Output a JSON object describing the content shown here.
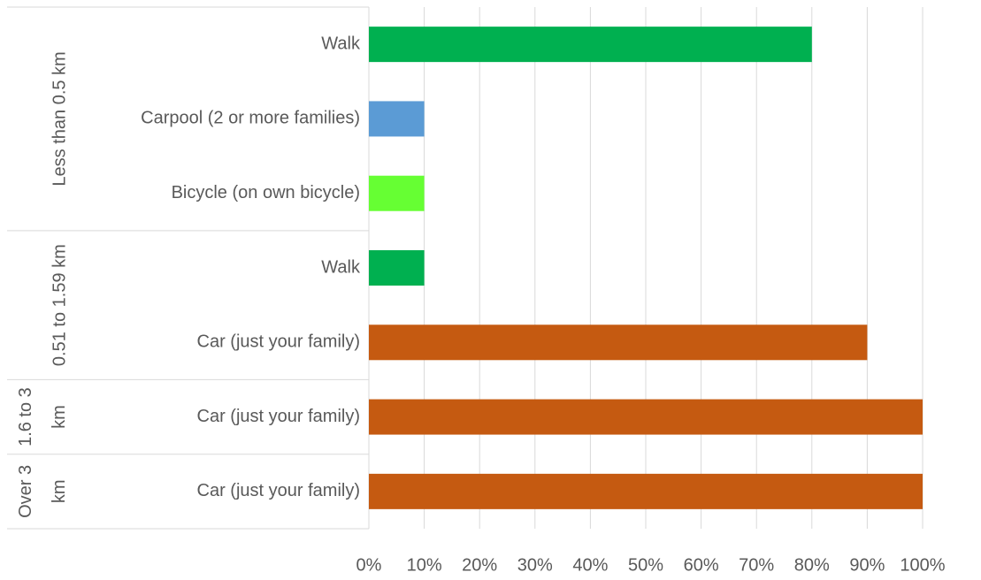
{
  "chart_data": {
    "type": "bar",
    "orientation": "horizontal",
    "groups": [
      {
        "name": "Less than 0.5 km",
        "categories": [
          "Walk",
          "Carpool (2 or more families)",
          "Bicycle (on own bicycle)"
        ],
        "values": [
          80,
          10,
          10
        ],
        "colors": [
          "#00b050",
          "#5b9bd5",
          "#66ff33"
        ]
      },
      {
        "name": "0.51 to 1.59 km",
        "categories": [
          "Walk",
          "Car (just your family)"
        ],
        "values": [
          10,
          90
        ],
        "colors": [
          "#00b050",
          "#c55a11"
        ]
      },
      {
        "name": "1.6 to 3 km",
        "categories": [
          "Car (just your family)"
        ],
        "values": [
          100
        ],
        "colors": [
          "#c55a11"
        ]
      },
      {
        "name": "Over 3 km",
        "categories": [
          "Car (just your family)"
        ],
        "values": [
          100
        ],
        "colors": [
          "#c55a11"
        ]
      }
    ],
    "xlim": [
      0,
      100
    ],
    "xticks": [
      {
        "value": 0,
        "label": "0%"
      },
      {
        "value": 10,
        "label": "10%"
      },
      {
        "value": 20,
        "label": "20%"
      },
      {
        "value": 30,
        "label": "30%"
      },
      {
        "value": 40,
        "label": "40%"
      },
      {
        "value": 50,
        "label": "50%"
      },
      {
        "value": 60,
        "label": "60%"
      },
      {
        "value": 70,
        "label": "70%"
      },
      {
        "value": 80,
        "label": "80%"
      },
      {
        "value": 90,
        "label": "90%"
      },
      {
        "value": 100,
        "label": "100%"
      }
    ],
    "grid": true
  }
}
